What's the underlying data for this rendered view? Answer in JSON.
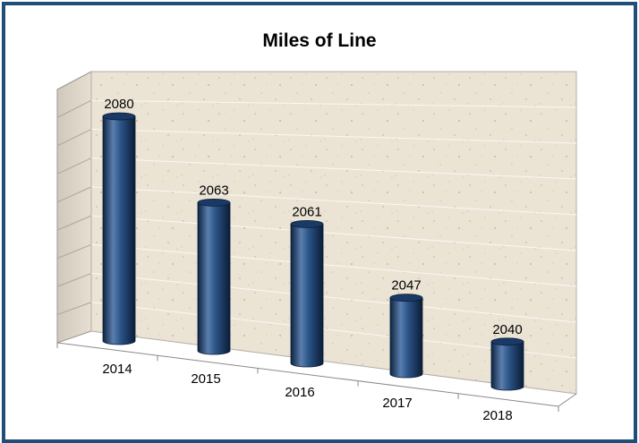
{
  "chart_data": {
    "type": "bar",
    "title": "Miles of Line",
    "categories": [
      "2014",
      "2015",
      "2016",
      "2017",
      "2018"
    ],
    "values": [
      2080,
      2063,
      2061,
      2047,
      2040
    ],
    "ylim": [
      2030,
      2085
    ],
    "grid": true,
    "legend": "none",
    "colors": {
      "frame": "#1f4e79",
      "bar": "#244b78",
      "bar_dark": "#0e2340",
      "bar_light": "#6e8fb8",
      "wall": "#e9e2d2",
      "side_wall": "#d6d0c4"
    }
  }
}
